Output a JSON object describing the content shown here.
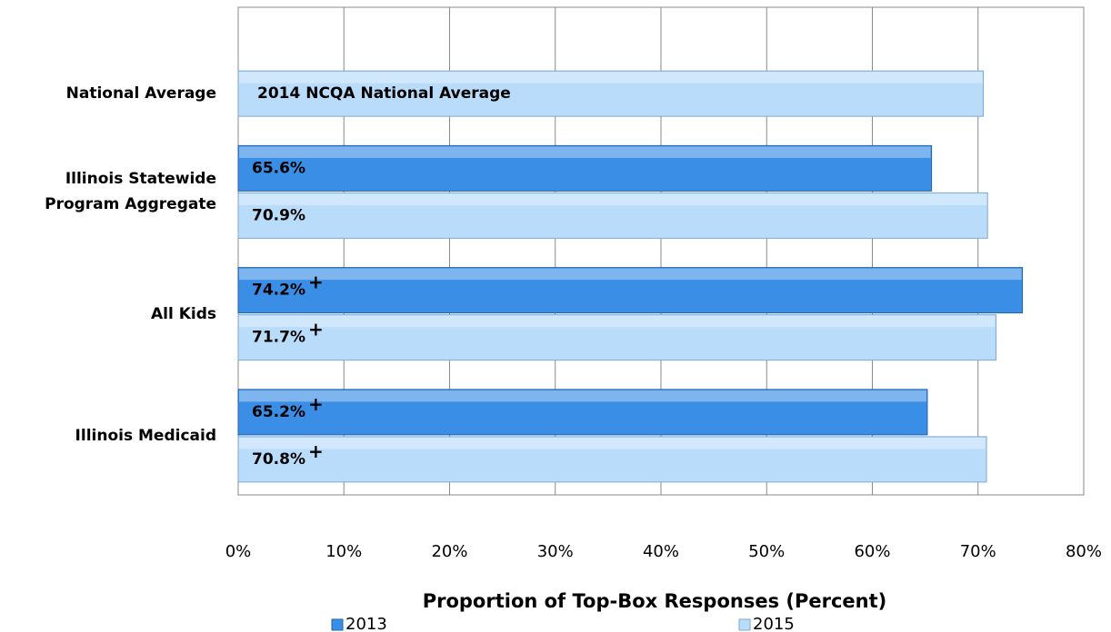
{
  "chart_data": {
    "type": "bar",
    "orientation": "horizontal",
    "categories": [
      "National Average",
      "Illinois Statewide Program Aggregate",
      "All Kids",
      "Illinois Medicaid"
    ],
    "series": [
      {
        "name": "2013",
        "color": "#3a8ee6",
        "values": [
          null,
          65.6,
          74.2,
          65.2
        ],
        "value_labels": [
          null,
          "65.6%",
          "74.2%",
          "65.2%"
        ],
        "superscripts": [
          null,
          null,
          "+",
          "+"
        ]
      },
      {
        "name": "2015",
        "color": "#b9dcfb",
        "values": [
          70.5,
          70.9,
          71.7,
          70.8
        ],
        "value_labels": [
          null,
          "70.9%",
          "71.7%",
          "70.8%"
        ],
        "superscripts": [
          null,
          null,
          "+",
          "+"
        ]
      }
    ],
    "annotations": [
      {
        "text": "2014 NCQA National Average",
        "category": 0,
        "series": 1
      }
    ],
    "xlim": [
      0,
      80
    ],
    "xticks": [
      {
        "value": 0,
        "label": "0%"
      },
      {
        "value": 10,
        "label": "10%"
      },
      {
        "value": 20,
        "label": "20%"
      },
      {
        "value": 30,
        "label": "30%"
      },
      {
        "value": 40,
        "label": "40%"
      },
      {
        "value": 50,
        "label": "50%"
      },
      {
        "value": 60,
        "label": "60%"
      },
      {
        "value": 70,
        "label": "70%"
      },
      {
        "value": 80,
        "label": "80%"
      }
    ],
    "x_label": "Proportion of Top-Box Responses (Percent)",
    "grid": true,
    "legend": "bottom"
  }
}
